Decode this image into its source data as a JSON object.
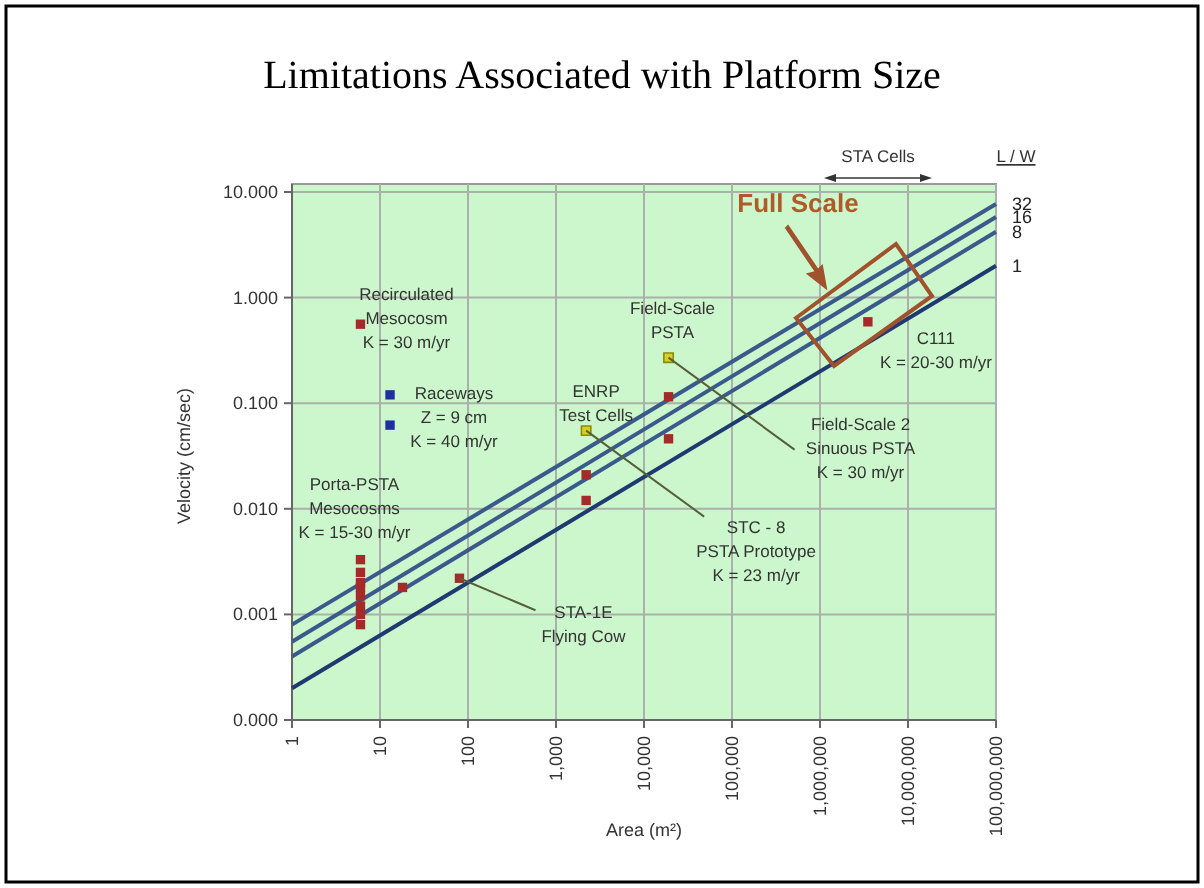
{
  "chart_data": {
    "type": "scatter",
    "title": "Limitations Associated with Platform Size",
    "xlabel": "Area (m²)",
    "ylabel": "Velocity (cm/sec)",
    "log": "xy",
    "grid": true,
    "legend": false,
    "xlim": [
      1,
      100000000
    ],
    "ylim": [
      0.0001,
      10
    ],
    "xticks": [
      {
        "value": 1,
        "label": "1"
      },
      {
        "value": 10,
        "label": "10"
      },
      {
        "value": 100,
        "label": "100"
      },
      {
        "value": 1000,
        "label": "1,000"
      },
      {
        "value": 10000,
        "label": "10,000"
      },
      {
        "value": 100000,
        "label": "100,000"
      },
      {
        "value": 1000000,
        "label": "1,000,000"
      },
      {
        "value": 10000000,
        "label": "10,000,000"
      },
      {
        "value": 100000000,
        "label": "100,000,000"
      }
    ],
    "yticks": [
      {
        "value": 0.0001,
        "label": "0.000"
      },
      {
        "value": 0.001,
        "label": "0.001"
      },
      {
        "value": 0.01,
        "label": "0.010"
      },
      {
        "value": 0.1,
        "label": "0.100"
      },
      {
        "value": 1,
        "label": "1.000"
      },
      {
        "value": 10,
        "label": "10.000"
      }
    ],
    "series": [
      {
        "name": "32",
        "type": "line",
        "marker": "none",
        "color": "#3a5a8c",
        "x": [
          1,
          100000000
        ],
        "values": [
          0.0008,
          7.7
        ]
      },
      {
        "name": "16",
        "type": "line",
        "marker": "none",
        "color": "#3a5a8c",
        "x": [
          1,
          100000000
        ],
        "values": [
          0.00055,
          5.8
        ]
      },
      {
        "name": "8",
        "type": "line",
        "marker": "none",
        "color": "#3a5a8c",
        "x": [
          1,
          100000000
        ],
        "values": [
          0.0004,
          4.2
        ]
      },
      {
        "name": "1",
        "type": "line",
        "marker": "none",
        "color": "#1f3a70",
        "x": [
          1,
          100000000
        ],
        "values": [
          0.0002,
          2
        ]
      },
      {
        "marker": "square",
        "color": "#a52a2a",
        "x": [
          6,
          6,
          6,
          6,
          6,
          6,
          6,
          6,
          6,
          18,
          80,
          2200,
          2200,
          19000,
          19000,
          3500000
        ],
        "values": [
          0.56,
          0.0008,
          0.001,
          0.0012,
          0.0015,
          0.0018,
          0.002,
          0.0025,
          0.0033,
          0.0018,
          0.0022,
          0.021,
          0.012,
          0.115,
          0.046,
          0.59
        ]
      },
      {
        "marker": "square",
        "color": "#1f2fa0",
        "x": [
          13,
          13
        ],
        "values": [
          0.12,
          0.062
        ]
      },
      {
        "marker": "square",
        "color": "#d8d020",
        "x": [
          2200,
          19000
        ],
        "values": [
          0.055,
          0.27
        ]
      }
    ],
    "annotations": [
      {
        "text": "Recirculated\nMesocosm\nK = 30 m/yr",
        "x": 6,
        "y": 0.56
      },
      {
        "text": "Raceways\nZ = 9 cm\nK = 40 m/yr",
        "x": 13,
        "y": 0.12
      },
      {
        "text": "Porta-PSTA\nMesocosms\nK = 15-30 m/yr",
        "x": 6,
        "y": 0.0033
      },
      {
        "text": "STA-1E\nFlying Cow",
        "x": 80,
        "y": 0.0022
      },
      {
        "text": "ENRP\nTest Cells",
        "x": 2200,
        "y": 0.055
      },
      {
        "text": "STC - 8\nPSTA Prototype\nK = 23 m/yr",
        "x": 2200,
        "y": 0.055
      },
      {
        "text": "Field-Scale\nPSTA",
        "x": 19000,
        "y": 0.27
      },
      {
        "text": "Field-Scale 2\nSinuous PSTA\nK = 30 m/yr",
        "x": 19000,
        "y": 0.27
      },
      {
        "text": "C111\nK = 20-30 m/yr",
        "x": 3500000,
        "y": 0.59
      },
      "Full Scale",
      "STA Cells",
      "L / W"
    ]
  }
}
